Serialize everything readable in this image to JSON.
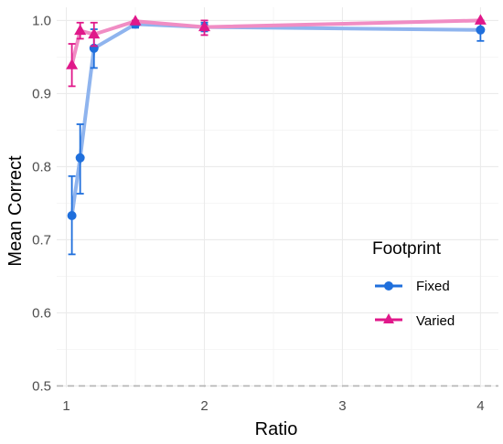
{
  "chart_data": {
    "type": "line",
    "xlabel": "Ratio",
    "ylabel": "Mean Correct",
    "xlim": [
      0.93,
      4.13
    ],
    "ylim": [
      0.498,
      1.018
    ],
    "xticks": [
      1,
      2,
      3,
      4
    ],
    "yticks": [
      0.5,
      0.6,
      0.7,
      0.8,
      0.9,
      1.0
    ],
    "ytick_labels": [
      "0.5",
      "0.6",
      "0.7",
      "0.8",
      "0.9",
      "1.0"
    ],
    "xtick_labels": [
      "1",
      "2",
      "3",
      "4"
    ],
    "grid": true,
    "reference_line": {
      "y": 0.5,
      "style": "dashed",
      "color": "#b3b3b3"
    },
    "legend": {
      "title": "Footprint",
      "position": "right"
    },
    "series": [
      {
        "name": "Fixed",
        "marker": "circle",
        "color": "#1f6fdc",
        "line_color": "#8fb4ee",
        "points": [
          {
            "x": 1.04,
            "y": 0.733,
            "lo": 0.68,
            "hi": 0.787
          },
          {
            "x": 1.1,
            "y": 0.812,
            "lo": 0.763,
            "hi": 0.858
          },
          {
            "x": 1.2,
            "y": 0.962,
            "lo": 0.935,
            "hi": 0.988
          },
          {
            "x": 1.5,
            "y": 0.995,
            "lo": 0.99,
            "hi": 1.0
          },
          {
            "x": 2.0,
            "y": 0.991,
            "lo": 0.985,
            "hi": 0.997
          },
          {
            "x": 4.0,
            "y": 0.987,
            "lo": 0.972,
            "hi": 1.0
          }
        ]
      },
      {
        "name": "Varied",
        "marker": "triangle",
        "color": "#e0188a",
        "line_color": "#f08dc4",
        "points": [
          {
            "x": 1.04,
            "y": 0.939,
            "lo": 0.91,
            "hi": 0.968
          },
          {
            "x": 1.1,
            "y": 0.986,
            "lo": 0.975,
            "hi": 0.997
          },
          {
            "x": 1.2,
            "y": 0.981,
            "lo": 0.965,
            "hi": 0.997
          },
          {
            "x": 1.5,
            "y": 0.999,
            "lo": 0.995,
            "hi": 1.0
          },
          {
            "x": 2.0,
            "y": 0.991,
            "lo": 0.98,
            "hi": 1.0
          },
          {
            "x": 4.0,
            "y": 1.0,
            "lo": 0.998,
            "hi": 1.0
          }
        ]
      }
    ]
  }
}
